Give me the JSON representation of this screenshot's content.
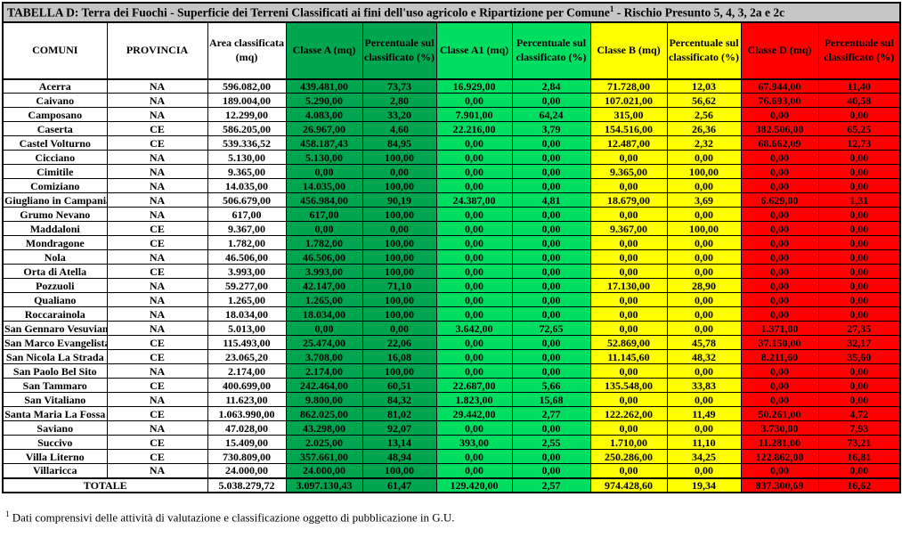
{
  "title": {
    "pre": "TABELLA D: Terra dei Fuochi - Superficie dei Terreni Classificati ai fini dell'uso agricolo e Ripartizione per Comune",
    "sup": "1",
    "post": " - Rischio Presunto 5, 4, 3, 2a e 2c"
  },
  "colors": {
    "title_bar": "#c6c6c6",
    "dark_green": "#00a550",
    "bright_green": "#00de62",
    "yellow": "#ffff00",
    "red": "#ff0000",
    "border": "#000000"
  },
  "table": {
    "columns": [
      {
        "key": "comune",
        "label": "COMUNI",
        "color": "white"
      },
      {
        "key": "provincia",
        "label": "PROVINCIA",
        "color": "white"
      },
      {
        "key": "area",
        "label": "Area classificata (mq)",
        "color": "white"
      },
      {
        "key": "classe_a",
        "label": "Classe A (mq)",
        "color": "dark_green"
      },
      {
        "key": "perc_a",
        "label": "Percentuale sul classificato (%)",
        "color": "dark_green"
      },
      {
        "key": "classe_a1",
        "label": "Classe A1 (mq)",
        "color": "bright_green"
      },
      {
        "key": "perc_a1",
        "label": "Percentuale sul classificato (%)",
        "color": "bright_green"
      },
      {
        "key": "classe_b",
        "label": "Classe B (mq)",
        "color": "yellow"
      },
      {
        "key": "perc_b",
        "label": "Percentuale sul classificato (%)",
        "color": "yellow"
      },
      {
        "key": "classe_d",
        "label": "Classe D (mq)",
        "color": "red"
      },
      {
        "key": "perc_d",
        "label": "Percentuale sul classificato (%)",
        "color": "red"
      }
    ],
    "rows": [
      [
        "Acerra",
        "NA",
        "596.082,00",
        "439.481,00",
        "73,73",
        "16.929,00",
        "2,84",
        "71.728,00",
        "12,03",
        "67.944,00",
        "11,40"
      ],
      [
        "Caivano",
        "NA",
        "189.004,00",
        "5.290,00",
        "2,80",
        "0,00",
        "0,00",
        "107.021,00",
        "56,62",
        "76.693,00",
        "40,58"
      ],
      [
        "Camposano",
        "NA",
        "12.299,00",
        "4.083,00",
        "33,20",
        "7.901,00",
        "64,24",
        "315,00",
        "2,56",
        "0,00",
        "0,00"
      ],
      [
        "Caserta",
        "CE",
        "586.205,00",
        "26.967,00",
        "4,60",
        "22.216,00",
        "3,79",
        "154.516,00",
        "26,36",
        "382.506,00",
        "65,25"
      ],
      [
        "Castel Volturno",
        "CE",
        "539.336,52",
        "458.187,43",
        "84,95",
        "0,00",
        "0,00",
        "12.487,00",
        "2,32",
        "68.662,09",
        "12,73"
      ],
      [
        "Cicciano",
        "NA",
        "5.130,00",
        "5.130,00",
        "100,00",
        "0,00",
        "0,00",
        "0,00",
        "0,00",
        "0,00",
        "0,00"
      ],
      [
        "Cimitile",
        "NA",
        "9.365,00",
        "0,00",
        "0,00",
        "0,00",
        "0,00",
        "9.365,00",
        "100,00",
        "0,00",
        "0,00"
      ],
      [
        "Comiziano",
        "NA",
        "14.035,00",
        "14.035,00",
        "100,00",
        "0,00",
        "0,00",
        "0,00",
        "0,00",
        "0,00",
        "0,00"
      ],
      [
        "Giugliano in Campania",
        "NA",
        "506.679,00",
        "456.984,00",
        "90,19",
        "24.387,00",
        "4,81",
        "18.679,00",
        "3,69",
        "6.629,00",
        "1,31"
      ],
      [
        "Grumo Nevano",
        "NA",
        "617,00",
        "617,00",
        "100,00",
        "0,00",
        "0,00",
        "0,00",
        "0,00",
        "0,00",
        "0,00"
      ],
      [
        "Maddaloni",
        "CE",
        "9.367,00",
        "0,00",
        "0,00",
        "0,00",
        "0,00",
        "9.367,00",
        "100,00",
        "0,00",
        "0,00"
      ],
      [
        "Mondragone",
        "CE",
        "1.782,00",
        "1.782,00",
        "100,00",
        "0,00",
        "0,00",
        "0,00",
        "0,00",
        "0,00",
        "0,00"
      ],
      [
        "Nola",
        "NA",
        "46.506,00",
        "46.506,00",
        "100,00",
        "0,00",
        "0,00",
        "0,00",
        "0,00",
        "0,00",
        "0,00"
      ],
      [
        "Orta di Atella",
        "CE",
        "3.993,00",
        "3.993,00",
        "100,00",
        "0,00",
        "0,00",
        "0,00",
        "0,00",
        "0,00",
        "0,00"
      ],
      [
        "Pozzuoli",
        "NA",
        "59.277,00",
        "42.147,00",
        "71,10",
        "0,00",
        "0,00",
        "17.130,00",
        "28,90",
        "0,00",
        "0,00"
      ],
      [
        "Qualiano",
        "NA",
        "1.265,00",
        "1.265,00",
        "100,00",
        "0,00",
        "0,00",
        "0,00",
        "0,00",
        "0,00",
        "0,00"
      ],
      [
        "Roccarainola",
        "NA",
        "18.034,00",
        "18.034,00",
        "100,00",
        "0,00",
        "0,00",
        "0,00",
        "0,00",
        "0,00",
        "0,00"
      ],
      [
        "San Gennaro Vesuviano",
        "NA",
        "5.013,00",
        "0,00",
        "0,00",
        "3.642,00",
        "72,65",
        "0,00",
        "0,00",
        "1.371,00",
        "27,35"
      ],
      [
        "San Marco Evangelista",
        "CE",
        "115.493,00",
        "25.474,00",
        "22,06",
        "0,00",
        "0,00",
        "52.869,00",
        "45,78",
        "37.150,00",
        "32,17"
      ],
      [
        "San Nicola La Strada",
        "CE",
        "23.065,20",
        "3.708,00",
        "16,08",
        "0,00",
        "0,00",
        "11.145,60",
        "48,32",
        "8.211,60",
        "35,60"
      ],
      [
        "San Paolo Bel Sito",
        "NA",
        "2.174,00",
        "2.174,00",
        "100,00",
        "0,00",
        "0,00",
        "0,00",
        "0,00",
        "0,00",
        "0,00"
      ],
      [
        "San Tammaro",
        "CE",
        "400.699,00",
        "242.464,00",
        "60,51",
        "22.687,00",
        "5,66",
        "135.548,00",
        "33,83",
        "0,00",
        "0,00"
      ],
      [
        "San Vitaliano",
        "NA",
        "11.623,00",
        "9.800,00",
        "84,32",
        "1.823,00",
        "15,68",
        "0,00",
        "0,00",
        "0,00",
        "0,00"
      ],
      [
        "Santa Maria La Fossa",
        "CE",
        "1.063.990,00",
        "862.025,00",
        "81,02",
        "29.442,00",
        "2,77",
        "122.262,00",
        "11,49",
        "50.261,00",
        "4,72"
      ],
      [
        "Saviano",
        "NA",
        "47.028,00",
        "43.298,00",
        "92,07",
        "0,00",
        "0,00",
        "0,00",
        "0,00",
        "3.730,00",
        "7,93"
      ],
      [
        "Succivo",
        "CE",
        "15.409,00",
        "2.025,00",
        "13,14",
        "393,00",
        "2,55",
        "1.710,00",
        "11,10",
        "11.281,00",
        "73,21"
      ],
      [
        "Villa Literno",
        "CE",
        "730.809,00",
        "357.661,00",
        "48,94",
        "0,00",
        "0,00",
        "250.286,00",
        "34,25",
        "122.862,00",
        "16,81"
      ],
      [
        "Villaricca",
        "NA",
        "24.000,00",
        "24.000,00",
        "100,00",
        "0,00",
        "0,00",
        "0,00",
        "0,00",
        "0,00",
        "0,00"
      ]
    ],
    "total": {
      "label": "TOTALE",
      "values": [
        "5.038.279,72",
        "3.097.130,43",
        "61,47",
        "129.420,00",
        "2,57",
        "974.428,60",
        "19,34",
        "837.300,69",
        "16,62"
      ]
    }
  },
  "footnote": {
    "sup": "1",
    "text": "Dati comprensivi delle attività di valutazione e classificazione oggetto di pubblicazione in G.U."
  }
}
